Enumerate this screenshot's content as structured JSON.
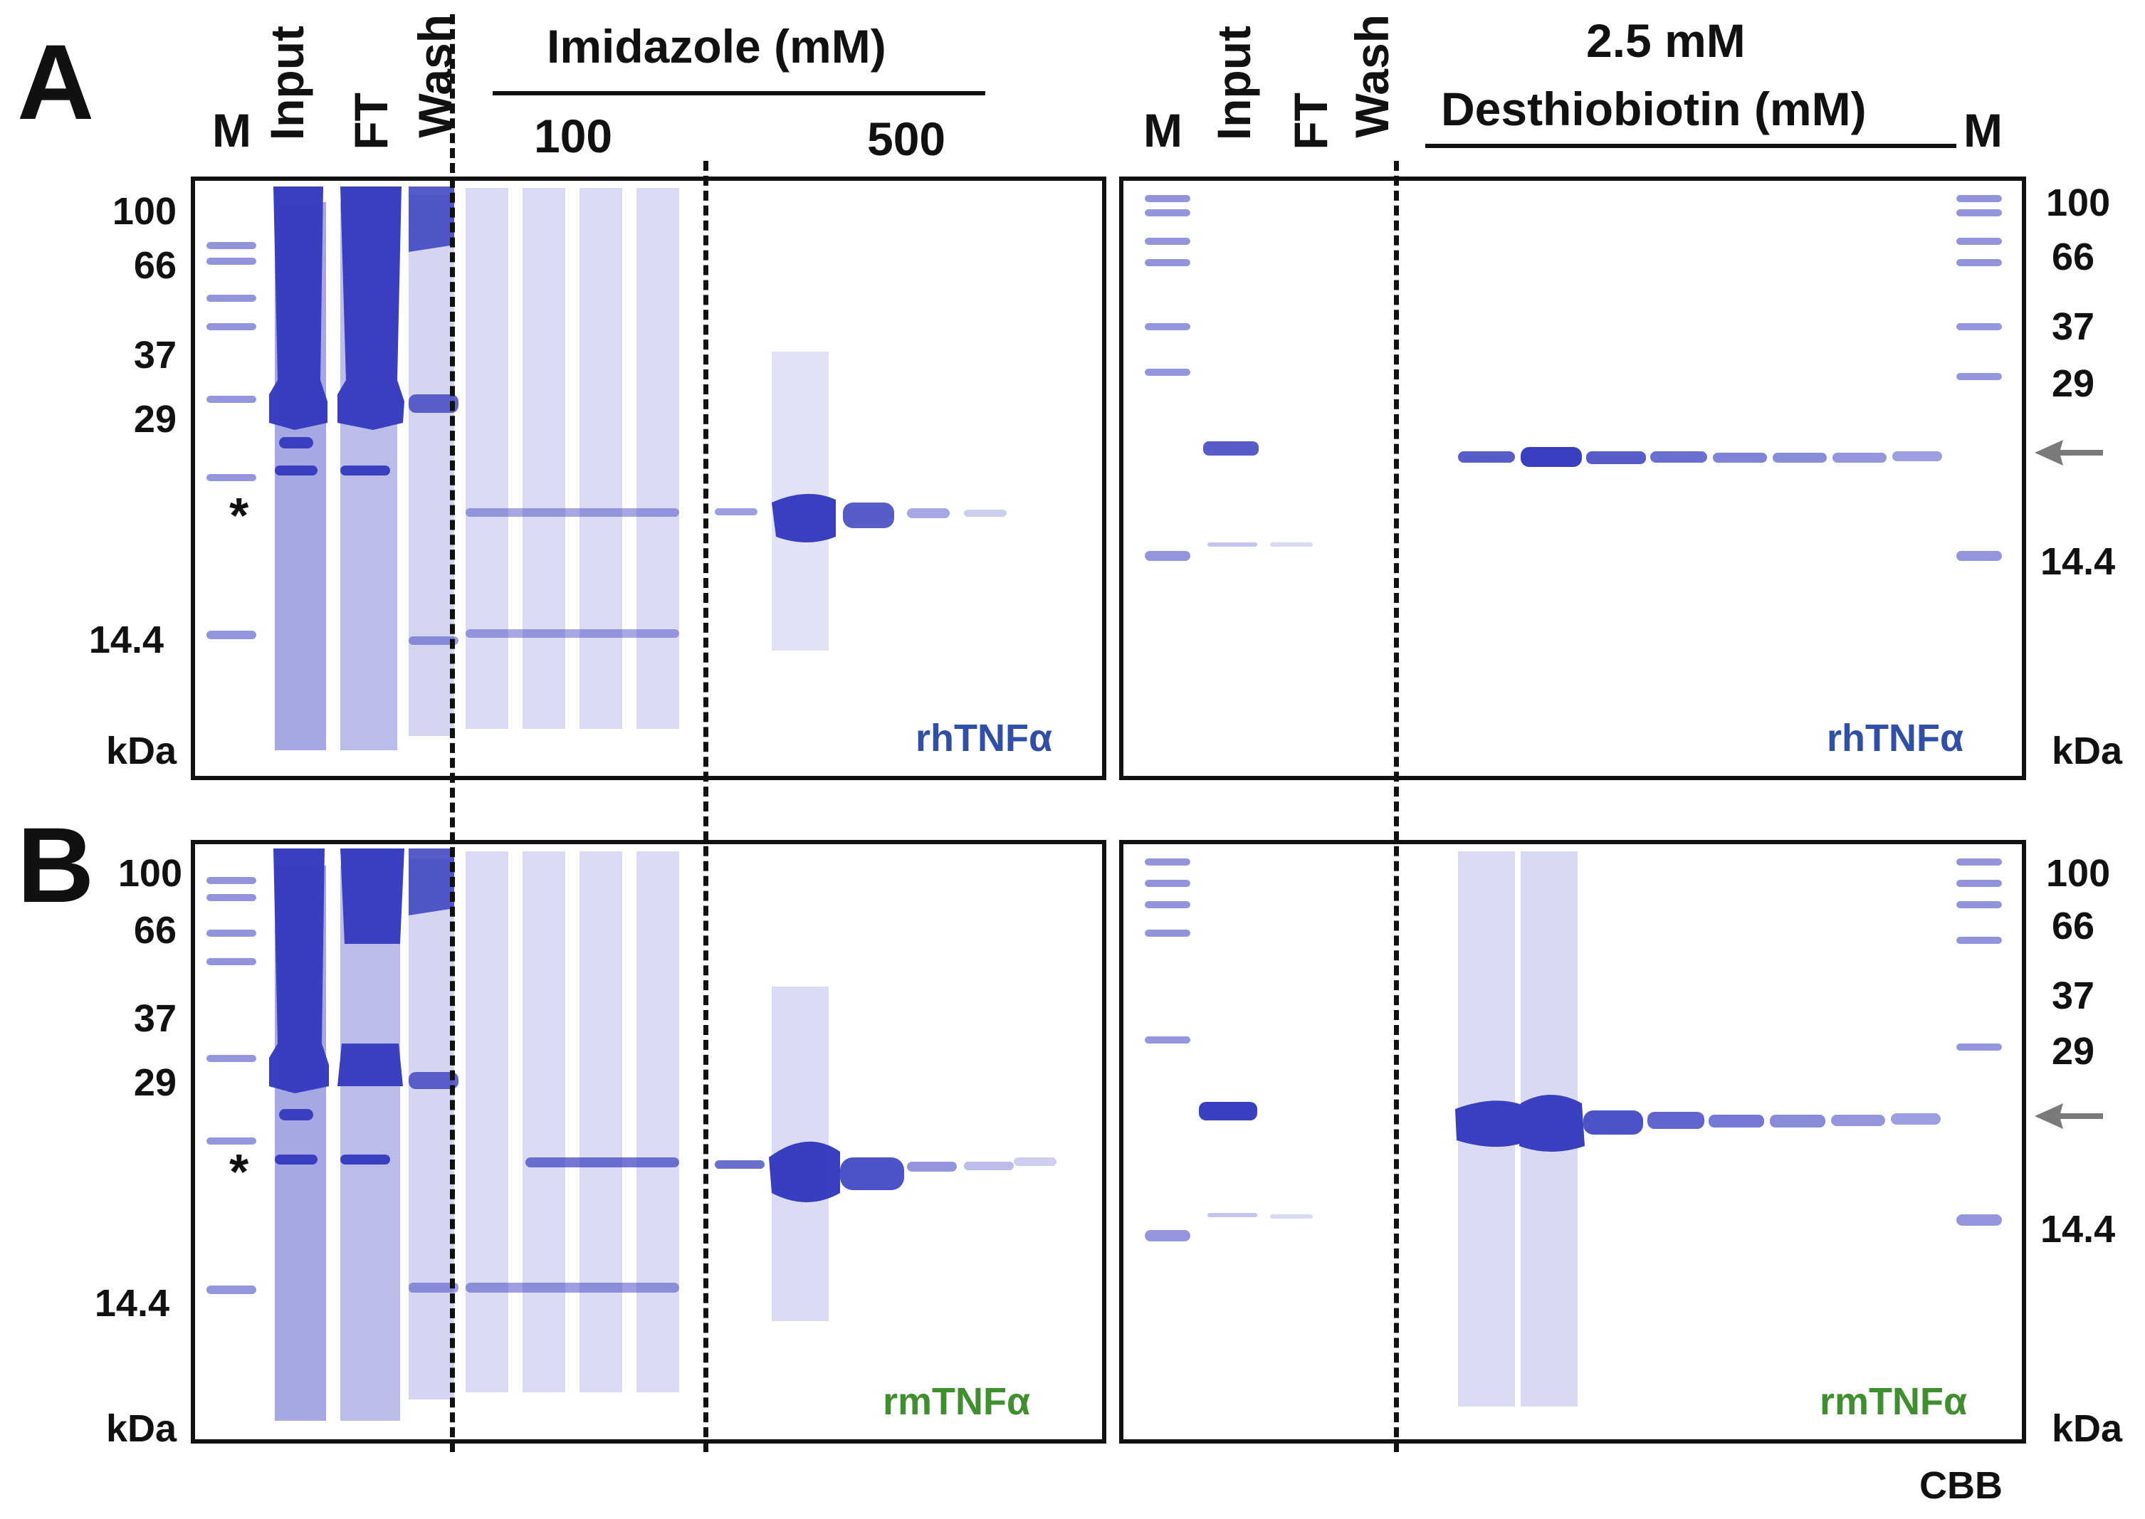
{
  "panels": {
    "a_label": "A",
    "b_label": "B"
  },
  "lanes_left": {
    "m": "M",
    "input": "Input",
    "ft": "FT",
    "wash": "Wash"
  },
  "lanes_right": {
    "m": "M",
    "input": "Input",
    "ft": "FT",
    "wash": "Wash",
    "m_end": "M"
  },
  "headers": {
    "imidazole": "Imidazole (mM)",
    "imid_100": "100",
    "imid_500": "500",
    "desthio_top": "2.5 mM",
    "desthio": "Desthiobiotin (mM)"
  },
  "markers_left_a": [
    "100",
    "66",
    "37",
    "29",
    "14.4",
    "kDa"
  ],
  "markers_right_a": [
    "100",
    "66",
    "37",
    "29",
    "14.4",
    "kDa"
  ],
  "markers_left_b": [
    "100",
    "66",
    "37",
    "29",
    "14.4",
    "kDa"
  ],
  "markers_right_b": [
    "100",
    "66",
    "37",
    "29",
    "14.4",
    "kDa"
  ],
  "asterisk": "*",
  "proteins": {
    "a_left": "rhTNFα",
    "a_right": "rhTNFα",
    "b_left": "rmTNFα",
    "b_right": "rmTNFα"
  },
  "stain": "CBB",
  "colors": {
    "gel_band": "#3a3fc0",
    "rh_label": "#2f4fa8",
    "rm_label": "#3f8f2f",
    "arrow": "#7a7a7a"
  }
}
